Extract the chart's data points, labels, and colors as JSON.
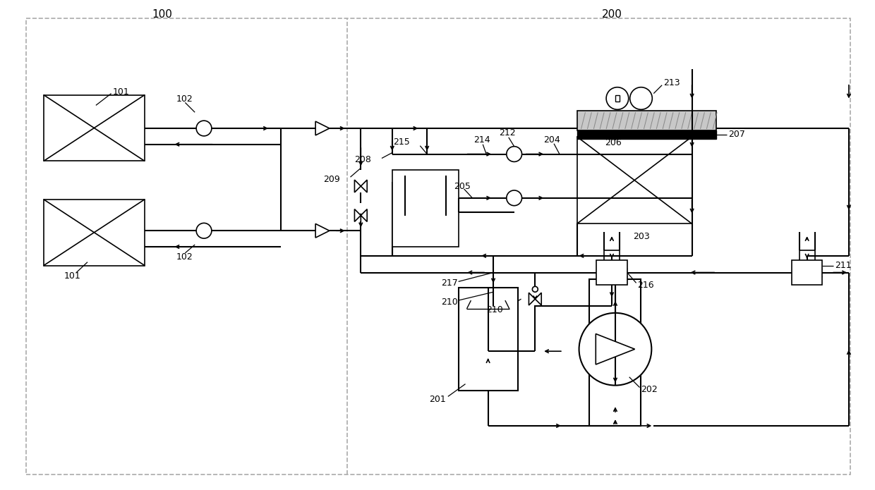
{
  "bg_color": "#ffffff",
  "line_color": "#000000",
  "dashed_color": "#aaaaaa",
  "fig_width": 12.4,
  "fig_height": 6.95
}
